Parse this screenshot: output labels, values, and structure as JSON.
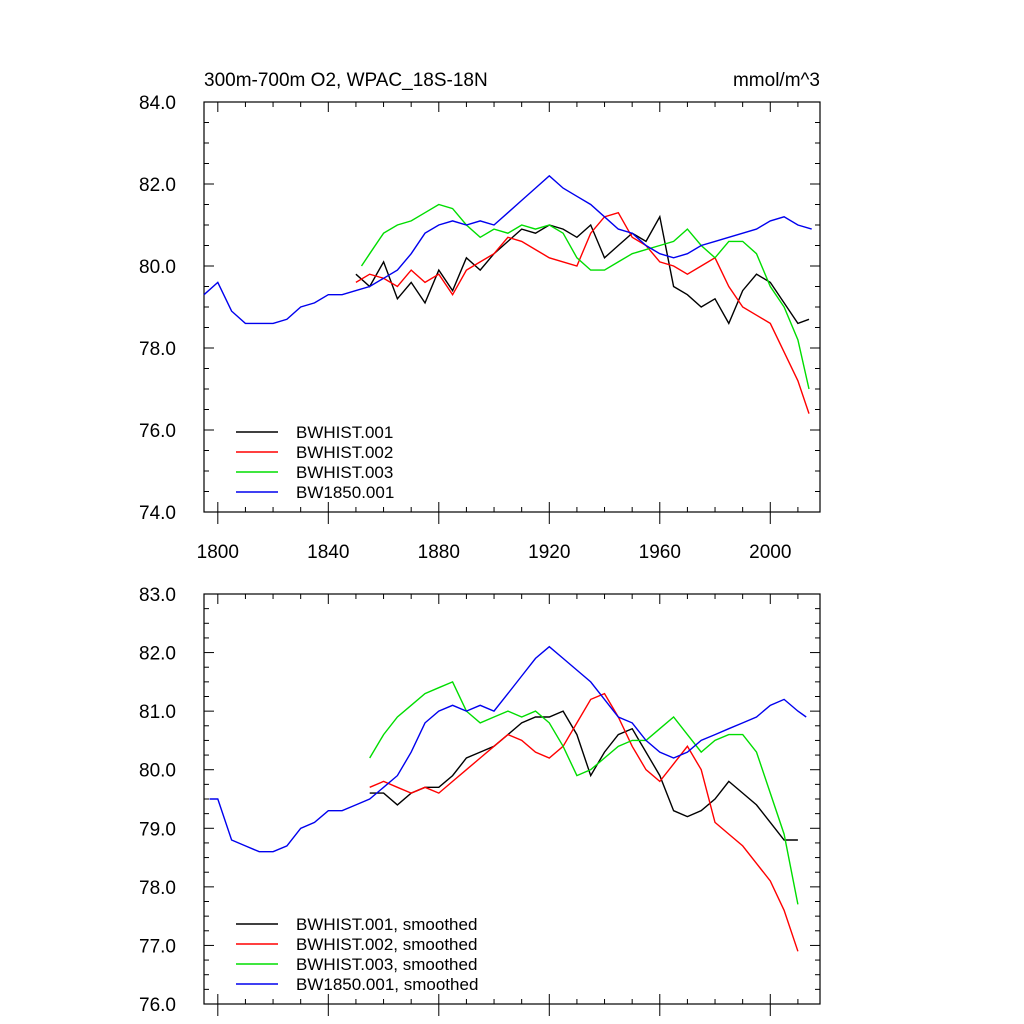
{
  "figure": {
    "title": "300m-700m O2, WPAC_18S-18N",
    "units": "mmol/m^3"
  },
  "chart_data": [
    {
      "type": "line",
      "title": "300m-700m O2, WPAC_18S-18N",
      "units": "mmol/m^3",
      "xlabel": "",
      "ylabel": "",
      "xlim": [
        1795,
        2018
      ],
      "ylim": [
        74,
        84
      ],
      "xticks": [
        1800,
        1840,
        1880,
        1920,
        1960,
        2000
      ],
      "xtick_labels": [
        "1800",
        "1840",
        "1880",
        "1920",
        "1960",
        "2000"
      ],
      "yticks": [
        74,
        76,
        78,
        80,
        82,
        84
      ],
      "ytick_labels": [
        "74.0",
        "76.0",
        "78.0",
        "80.0",
        "82.0",
        "84.0"
      ],
      "grid": false,
      "legend_position": "bottom-left",
      "series": [
        {
          "name": "BWHIST.001",
          "color": "#000000",
          "x": [
            1850,
            1855,
            1860,
            1865,
            1870,
            1875,
            1880,
            1885,
            1890,
            1895,
            1900,
            1905,
            1910,
            1915,
            1920,
            1925,
            1930,
            1935,
            1940,
            1945,
            1950,
            1955,
            1960,
            1965,
            1970,
            1975,
            1980,
            1985,
            1990,
            1995,
            2000,
            2005,
            2010,
            2014
          ],
          "y": [
            79.8,
            79.5,
            80.1,
            79.2,
            79.6,
            79.1,
            79.9,
            79.4,
            80.2,
            79.9,
            80.3,
            80.6,
            80.9,
            80.8,
            81.0,
            80.9,
            80.7,
            81.0,
            80.2,
            80.5,
            80.8,
            80.6,
            81.2,
            79.5,
            79.3,
            79.0,
            79.2,
            78.6,
            79.4,
            79.8,
            79.6,
            79.1,
            78.6,
            78.7
          ]
        },
        {
          "name": "BWHIST.002",
          "color": "#ff0000",
          "x": [
            1850,
            1855,
            1860,
            1865,
            1870,
            1875,
            1880,
            1885,
            1890,
            1895,
            1900,
            1905,
            1910,
            1915,
            1920,
            1925,
            1930,
            1935,
            1940,
            1945,
            1950,
            1955,
            1960,
            1965,
            1970,
            1975,
            1980,
            1985,
            1990,
            1995,
            2000,
            2005,
            2010,
            2014
          ],
          "y": [
            79.6,
            79.8,
            79.7,
            79.5,
            79.9,
            79.6,
            79.8,
            79.3,
            79.9,
            80.1,
            80.3,
            80.7,
            80.6,
            80.4,
            80.2,
            80.1,
            80.0,
            80.8,
            81.2,
            81.3,
            80.7,
            80.5,
            80.1,
            80.0,
            79.8,
            80.0,
            80.2,
            79.5,
            79.0,
            78.8,
            78.6,
            77.9,
            77.2,
            76.4
          ]
        },
        {
          "name": "BWHIST.003",
          "color": "#00dd00",
          "x": [
            1852,
            1855,
            1860,
            1865,
            1870,
            1875,
            1880,
            1885,
            1890,
            1895,
            1900,
            1905,
            1910,
            1915,
            1920,
            1925,
            1930,
            1935,
            1940,
            1945,
            1950,
            1955,
            1960,
            1965,
            1970,
            1975,
            1980,
            1985,
            1990,
            1995,
            2000,
            2005,
            2010,
            2014
          ],
          "y": [
            80.0,
            80.3,
            80.8,
            81.0,
            81.1,
            81.3,
            81.5,
            81.4,
            81.0,
            80.7,
            80.9,
            80.8,
            81.0,
            80.9,
            81.0,
            80.8,
            80.2,
            79.9,
            79.9,
            80.1,
            80.3,
            80.4,
            80.5,
            80.6,
            80.9,
            80.5,
            80.2,
            80.6,
            80.6,
            80.3,
            79.5,
            79.0,
            78.2,
            77.0
          ]
        },
        {
          "name": "BW1850.001",
          "color": "#0000ee",
          "x": [
            1795,
            1800,
            1805,
            1810,
            1815,
            1820,
            1825,
            1830,
            1835,
            1840,
            1845,
            1850,
            1855,
            1860,
            1865,
            1870,
            1875,
            1880,
            1885,
            1890,
            1895,
            1900,
            1905,
            1910,
            1915,
            1920,
            1925,
            1930,
            1935,
            1940,
            1945,
            1950,
            1955,
            1960,
            1965,
            1970,
            1975,
            1980,
            1985,
            1990,
            1995,
            2000,
            2005,
            2010,
            2015
          ],
          "y": [
            79.3,
            79.6,
            78.9,
            78.6,
            78.6,
            78.6,
            78.7,
            79.0,
            79.1,
            79.3,
            79.3,
            79.4,
            79.5,
            79.7,
            79.9,
            80.3,
            80.8,
            81.0,
            81.1,
            81.0,
            81.1,
            81.0,
            81.3,
            81.6,
            81.9,
            82.2,
            81.9,
            81.7,
            81.5,
            81.2,
            80.9,
            80.8,
            80.5,
            80.3,
            80.2,
            80.3,
            80.5,
            80.6,
            80.7,
            80.8,
            80.9,
            81.1,
            81.2,
            81.0,
            80.9
          ]
        }
      ]
    },
    {
      "type": "line",
      "title": "",
      "xlabel": "",
      "ylabel": "",
      "xlim": [
        1795,
        2018
      ],
      "ylim": [
        76,
        83
      ],
      "xticks": [
        1800,
        1840,
        1880,
        1920,
        1960,
        2000
      ],
      "xtick_labels": [],
      "yticks": [
        76,
        77,
        78,
        79,
        80,
        81,
        82,
        83
      ],
      "ytick_labels": [
        "76.0",
        "77.0",
        "78.0",
        "79.0",
        "80.0",
        "81.0",
        "82.0",
        "83.0"
      ],
      "grid": false,
      "legend_position": "bottom-left",
      "series": [
        {
          "name": "BWHIST.001, smoothed",
          "color": "#000000",
          "x": [
            1855,
            1860,
            1865,
            1870,
            1875,
            1880,
            1885,
            1890,
            1895,
            1900,
            1905,
            1910,
            1915,
            1920,
            1925,
            1930,
            1935,
            1940,
            1945,
            1950,
            1955,
            1960,
            1965,
            1970,
            1975,
            1980,
            1985,
            1990,
            1995,
            2000,
            2005,
            2010
          ],
          "y": [
            79.6,
            79.6,
            79.4,
            79.6,
            79.7,
            79.7,
            79.9,
            80.2,
            80.3,
            80.4,
            80.6,
            80.8,
            80.9,
            80.9,
            81.0,
            80.6,
            79.9,
            80.3,
            80.6,
            80.7,
            80.3,
            79.9,
            79.3,
            79.2,
            79.3,
            79.5,
            79.8,
            79.6,
            79.4,
            79.1,
            78.8,
            78.8
          ]
        },
        {
          "name": "BWHIST.002, smoothed",
          "color": "#ff0000",
          "x": [
            1855,
            1860,
            1865,
            1870,
            1875,
            1880,
            1885,
            1890,
            1895,
            1900,
            1905,
            1910,
            1915,
            1920,
            1925,
            1930,
            1935,
            1940,
            1945,
            1950,
            1955,
            1960,
            1965,
            1970,
            1975,
            1980,
            1985,
            1990,
            1995,
            2000,
            2005,
            2010
          ],
          "y": [
            79.7,
            79.8,
            79.7,
            79.6,
            79.7,
            79.6,
            79.8,
            80.0,
            80.2,
            80.4,
            80.6,
            80.5,
            80.3,
            80.2,
            80.4,
            80.8,
            81.2,
            81.3,
            80.9,
            80.4,
            80.0,
            79.8,
            80.1,
            80.4,
            80.0,
            79.1,
            78.9,
            78.7,
            78.4,
            78.1,
            77.6,
            76.9
          ]
        },
        {
          "name": "BWHIST.003, smoothed",
          "color": "#00dd00",
          "x": [
            1855,
            1860,
            1865,
            1870,
            1875,
            1880,
            1885,
            1890,
            1895,
            1900,
            1905,
            1910,
            1915,
            1920,
            1925,
            1930,
            1935,
            1940,
            1945,
            1950,
            1955,
            1960,
            1965,
            1970,
            1975,
            1980,
            1985,
            1990,
            1995,
            2000,
            2005,
            2010
          ],
          "y": [
            80.2,
            80.6,
            80.9,
            81.1,
            81.3,
            81.4,
            81.5,
            81.0,
            80.8,
            80.9,
            81.0,
            80.9,
            81.0,
            80.8,
            80.4,
            79.9,
            80.0,
            80.2,
            80.4,
            80.5,
            80.5,
            80.7,
            80.9,
            80.6,
            80.3,
            80.5,
            80.6,
            80.6,
            80.3,
            79.6,
            78.9,
            77.7
          ]
        },
        {
          "name": "BW1850.001, smoothed",
          "color": "#0000ee",
          "x": [
            1797,
            1800,
            1805,
            1810,
            1815,
            1820,
            1825,
            1830,
            1835,
            1840,
            1845,
            1850,
            1855,
            1860,
            1865,
            1870,
            1875,
            1880,
            1885,
            1890,
            1895,
            1900,
            1905,
            1910,
            1915,
            1920,
            1925,
            1930,
            1935,
            1940,
            1945,
            1950,
            1955,
            1960,
            1965,
            1970,
            1975,
            1980,
            1985,
            1990,
            1995,
            2000,
            2005,
            2010,
            2013
          ],
          "y": [
            79.5,
            79.5,
            78.8,
            78.7,
            78.6,
            78.6,
            78.7,
            79.0,
            79.1,
            79.3,
            79.3,
            79.4,
            79.5,
            79.7,
            79.9,
            80.3,
            80.8,
            81.0,
            81.1,
            81.0,
            81.1,
            81.0,
            81.3,
            81.6,
            81.9,
            82.1,
            81.9,
            81.7,
            81.5,
            81.2,
            80.9,
            80.8,
            80.5,
            80.3,
            80.2,
            80.3,
            80.5,
            80.6,
            80.7,
            80.8,
            80.9,
            81.1,
            81.2,
            81.0,
            80.9
          ]
        }
      ]
    }
  ]
}
